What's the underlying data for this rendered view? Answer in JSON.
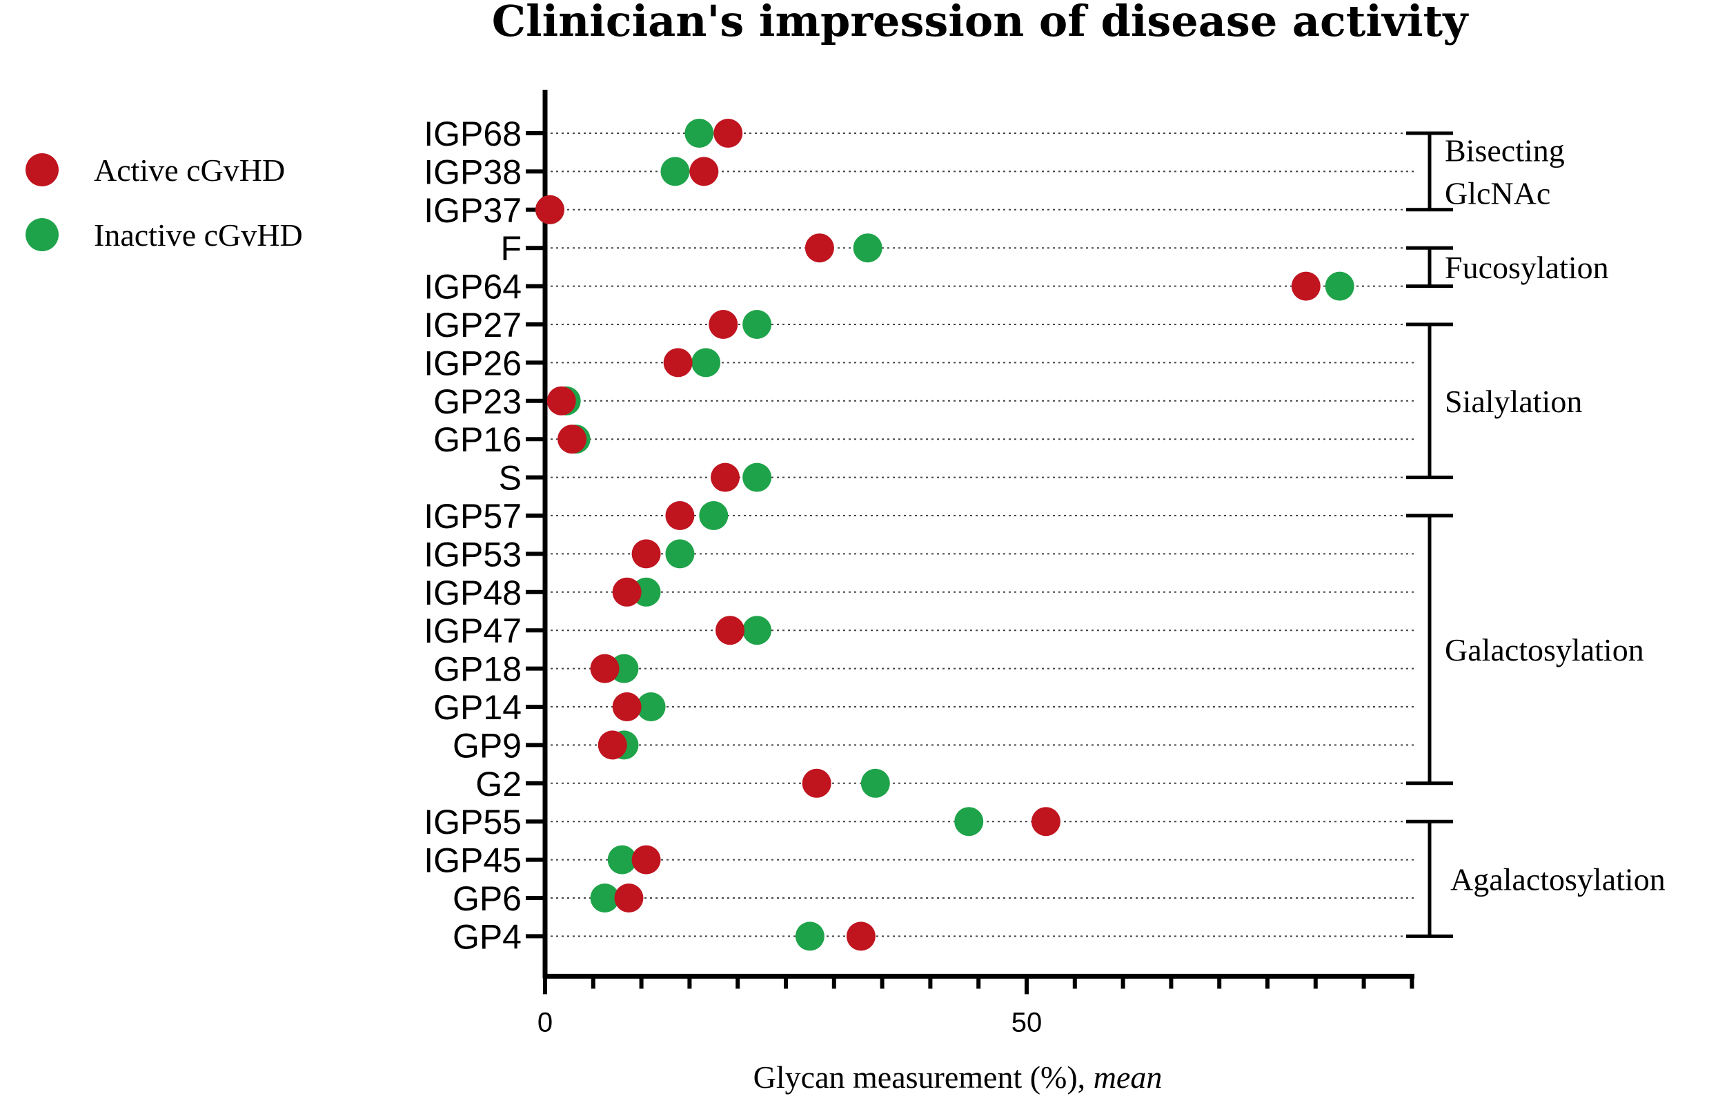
{
  "chart_data": {
    "type": "scatter",
    "title": "Clinician's impression of disease activity",
    "xlabel": "Glycan measurement (%),",
    "xlabel_emphasis": "mean",
    "ylabel": "",
    "xlim": [
      0,
      90
    ],
    "xticks": [
      0,
      50
    ],
    "categories": [
      "IGP68",
      "IGP38",
      "IGP37",
      "F",
      "IGP64",
      "IGP27",
      "IGP26",
      "GP23",
      "GP16",
      "S",
      "IGP57",
      "IGP53",
      "IGP48",
      "IGP47",
      "GP18",
      "GP14",
      "GP9",
      "G2",
      "IGP55",
      "IGP45",
      "GP6",
      "GP4"
    ],
    "series": [
      {
        "name": "Active cGvHD",
        "color": "#c0141f",
        "values": [
          19,
          16.5,
          0.5,
          28.5,
          79,
          18.5,
          13.8,
          1.7,
          2.8,
          18.7,
          14,
          10.5,
          8.5,
          19.2,
          6.2,
          8.5,
          7,
          28.2,
          52,
          10.5,
          8.7,
          32.8
        ]
      },
      {
        "name": "Inactive cGvHD",
        "color": "#1fa34a",
        "values": [
          16,
          13.5,
          0.5,
          33.5,
          82.5,
          22,
          16.7,
          2.2,
          3.2,
          22,
          17.5,
          14,
          10.5,
          22,
          8.2,
          11,
          8.2,
          34.3,
          44,
          8,
          6.2,
          27.5
        ]
      }
    ],
    "groups": [
      {
        "lines": [
          "Bisecting",
          "GlcNAc"
        ],
        "from": "IGP68",
        "to": "IGP37"
      },
      {
        "lines": [
          "Fucosylation"
        ],
        "from": "F",
        "to": "IGP64"
      },
      {
        "lines": [
          "Sialylation"
        ],
        "from": "IGP27",
        "to": "S"
      },
      {
        "lines": [
          "Galactosylation"
        ],
        "from": "IGP57",
        "to": "G2"
      },
      {
        "lines": [
          "Agalactosylation"
        ],
        "from": "IGP55",
        "to": "GP4"
      }
    ],
    "legend_position": "top-left",
    "grid": "horizontal-dotted"
  }
}
